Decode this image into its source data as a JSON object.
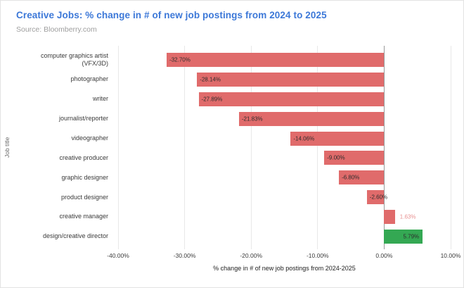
{
  "header": {
    "title": "Creative Jobs: % change in # of new job postings from 2024 to 2025",
    "source": "Source: Bloomberry.com"
  },
  "colors": {
    "title": "#3c78d8",
    "source": "#9e9e9e",
    "negative_bar": "#e06b6b",
    "positive_bar": "#34a853",
    "value_label_dark": "#2e2e2e",
    "value_label_accent": "#e89191",
    "gridline": "#e8e8e8",
    "zero_line": "#999999"
  },
  "chart_data": {
    "type": "bar",
    "orientation": "horizontal",
    "title": "Creative Jobs: % change in # of new job postings from 2024 to 2025",
    "xlabel": "% change in # of new job postings from 2024-2025",
    "ylabel": "Job title",
    "xlim": [
      -40,
      10
    ],
    "grid": true,
    "legend": false,
    "xticks": [
      {
        "value": -40,
        "label": "-40.00%"
      },
      {
        "value": -30,
        "label": "-30.00%"
      },
      {
        "value": -20,
        "label": "-20.00%"
      },
      {
        "value": -10,
        "label": "-10.00%"
      },
      {
        "value": 0,
        "label": "0.00%"
      },
      {
        "value": 10,
        "label": "10.00%"
      }
    ],
    "categories": [
      "computer graphics artist (VFX/3D)",
      "photographer",
      "writer",
      "journalist/reporter",
      "videographer",
      "creative producer",
      "graphic designer",
      "product designer",
      "creative manager",
      "design/creative director"
    ],
    "values": [
      -32.7,
      -28.14,
      -27.89,
      -21.83,
      -14.06,
      -9.0,
      -6.8,
      -2.6,
      1.63,
      5.79
    ],
    "bars": [
      {
        "category": "computer graphics artist (VFX/3D)",
        "value": -32.7,
        "label": "-32.70%",
        "color": "negative",
        "label_position": "inside-left",
        "label_color": "dark"
      },
      {
        "category": "photographer",
        "value": -28.14,
        "label": "-28.14%",
        "color": "negative",
        "label_position": "inside-left",
        "label_color": "dark"
      },
      {
        "category": "writer",
        "value": -27.89,
        "label": "-27.89%",
        "color": "negative",
        "label_position": "inside-left",
        "label_color": "dark"
      },
      {
        "category": "journalist/reporter",
        "value": -21.83,
        "label": "-21.83%",
        "color": "negative",
        "label_position": "inside-left",
        "label_color": "dark"
      },
      {
        "category": "videographer",
        "value": -14.06,
        "label": "-14.06%",
        "color": "negative",
        "label_position": "inside-left",
        "label_color": "dark"
      },
      {
        "category": "creative producer",
        "value": -9.0,
        "label": "-9.00%",
        "color": "negative",
        "label_position": "inside-left",
        "label_color": "dark"
      },
      {
        "category": "graphic designer",
        "value": -6.8,
        "label": "-6.80%",
        "color": "negative",
        "label_position": "inside-left",
        "label_color": "dark"
      },
      {
        "category": "product designer",
        "value": -2.6,
        "label": "-2.60%",
        "color": "negative",
        "label_position": "inside-left",
        "label_color": "dark"
      },
      {
        "category": "creative manager",
        "value": 1.63,
        "label": "1.63%",
        "color": "negative",
        "label_position": "outside-right",
        "label_color": "accent"
      },
      {
        "category": "design/creative director",
        "value": 5.79,
        "label": "5.79%",
        "color": "positive",
        "label_position": "inside-right",
        "label_color": "dark"
      }
    ]
  }
}
